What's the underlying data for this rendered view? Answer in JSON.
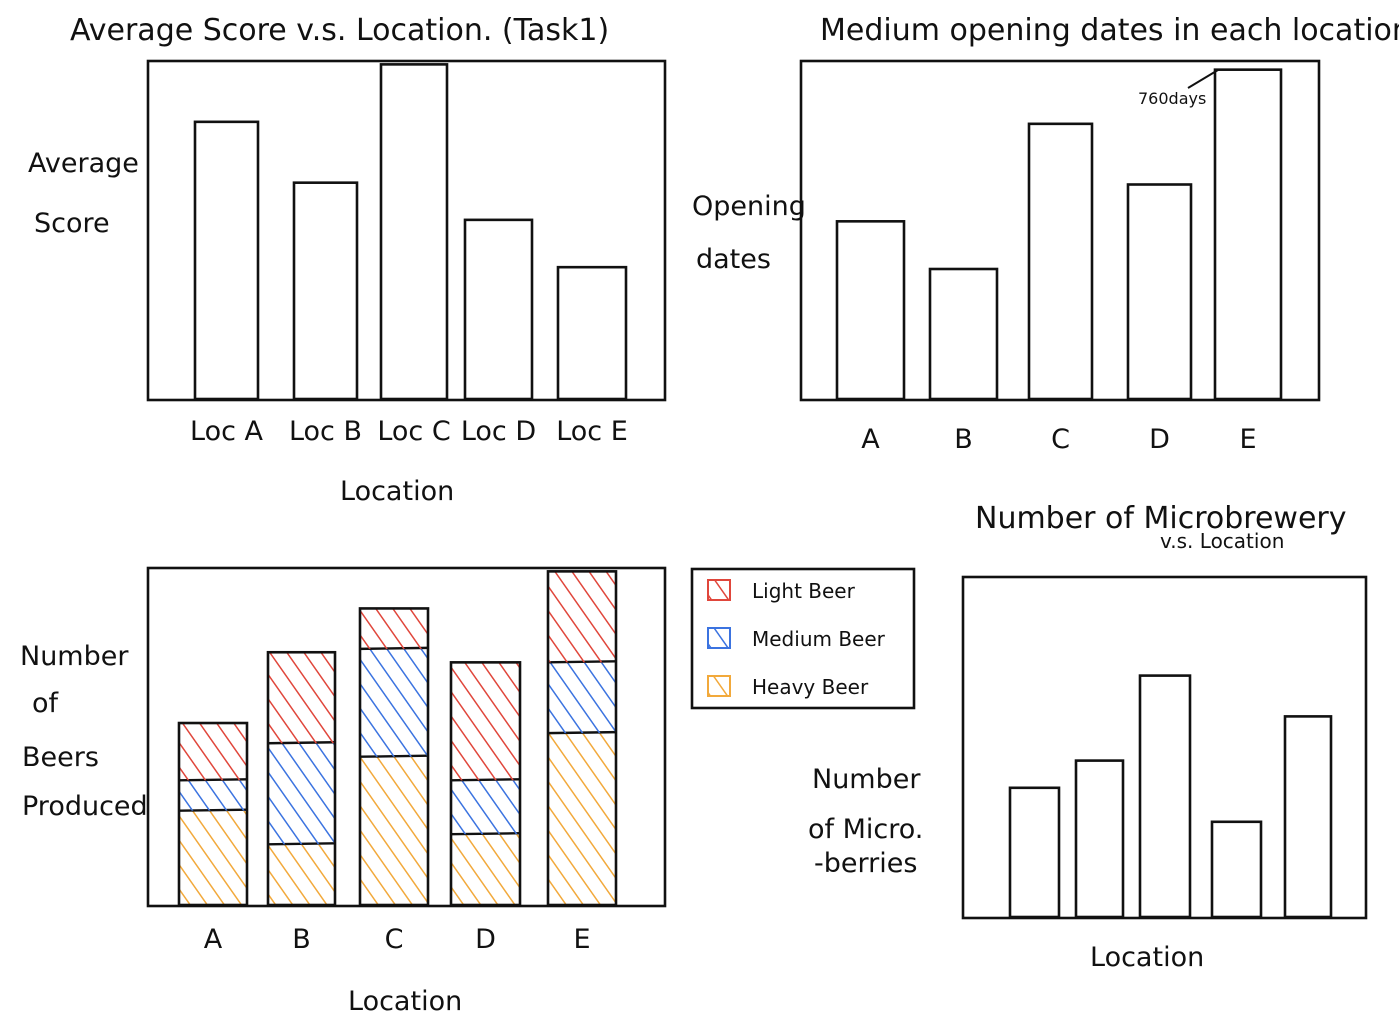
{
  "chart_data": [
    {
      "id": "avg-score",
      "type": "bar",
      "title": "Average Score v.s. Location. (Task1)",
      "xlabel": "Location",
      "ylabel": [
        "Average",
        "Score"
      ],
      "categories": [
        "Loc A",
        "Loc B",
        "Loc C",
        "Loc D",
        "Loc E"
      ],
      "values": [
        82,
        64,
        99,
        53,
        39
      ],
      "ylim": [
        0,
        100
      ],
      "grid": false
    },
    {
      "id": "opening-dates",
      "type": "bar",
      "title": "Medium opening dates in each location",
      "xlabel": "",
      "ylabel": [
        "Opening",
        "dates"
      ],
      "categories": [
        "A",
        "B",
        "C",
        "D",
        "E"
      ],
      "values": [
        410,
        300,
        635,
        495,
        760
      ],
      "ylim": [
        0,
        780
      ],
      "annotation": {
        "text": "760days",
        "category": "E"
      },
      "grid": false
    },
    {
      "id": "beers-produced",
      "type": "bar",
      "stacked": true,
      "title": "",
      "xlabel": "Location",
      "ylabel": [
        "Number",
        "of",
        "Beers",
        "Produced"
      ],
      "categories": [
        "A",
        "B",
        "C",
        "D",
        "E"
      ],
      "series": [
        {
          "name": "Heavy Beer",
          "color": "#f2a93b",
          "values": [
            28,
            18,
            44,
            21,
            51
          ]
        },
        {
          "name": "Medium Beer",
          "color": "#3b73e0",
          "values": [
            9,
            30,
            32,
            16,
            21
          ]
        },
        {
          "name": "Light Beer",
          "color": "#e0463b",
          "values": [
            17,
            27,
            12,
            35,
            27
          ]
        }
      ],
      "ylim": [
        0,
        100
      ],
      "legend": "right",
      "grid": false
    },
    {
      "id": "microbrewery",
      "type": "bar",
      "title": [
        "Number of Microbrewery",
        "v.s. Location"
      ],
      "xlabel": "Location",
      "ylabel": [
        "Number",
        "of Micro.",
        "-berries"
      ],
      "categories": [
        "",
        "",
        "",
        "",
        ""
      ],
      "values": [
        38,
        46,
        71,
        28,
        59
      ],
      "ylim": [
        0,
        100
      ],
      "grid": false
    }
  ]
}
